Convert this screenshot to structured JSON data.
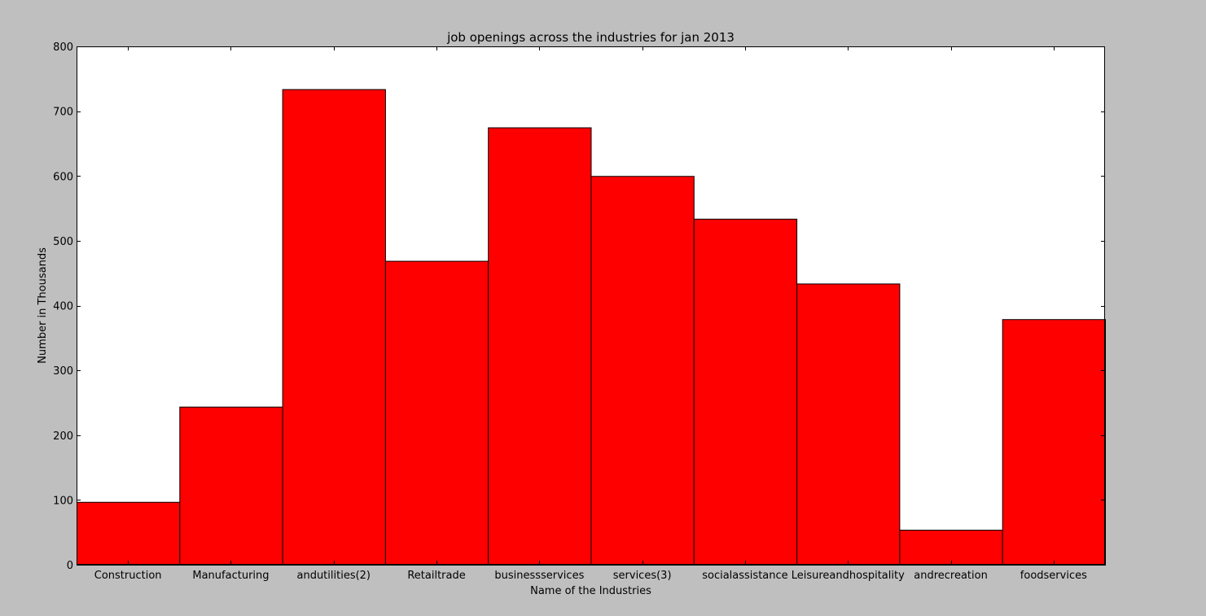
{
  "chart_data": {
    "type": "bar",
    "title": "job openings across the industries for jan 2013",
    "xlabel": "Name of the Industries",
    "ylabel": "Number in Thousands",
    "categories": [
      "Construction",
      "Manufacturing",
      "andutilities(2)",
      "Retailtrade",
      "businessservices",
      "services(3)",
      "socialassistance",
      "Leisureandhospitality",
      "andrecreation",
      "foodservices"
    ],
    "values": [
      97,
      244,
      734,
      469,
      675,
      600,
      534,
      434,
      54,
      379
    ],
    "ylim": [
      0,
      800
    ],
    "yticks": [
      0,
      100,
      200,
      300,
      400,
      500,
      600,
      700,
      800
    ],
    "bar_color": "#ff0000",
    "background_color": "#bfbfbf",
    "plot_background_color": "#ffffff",
    "grid": false,
    "legend": "none"
  }
}
